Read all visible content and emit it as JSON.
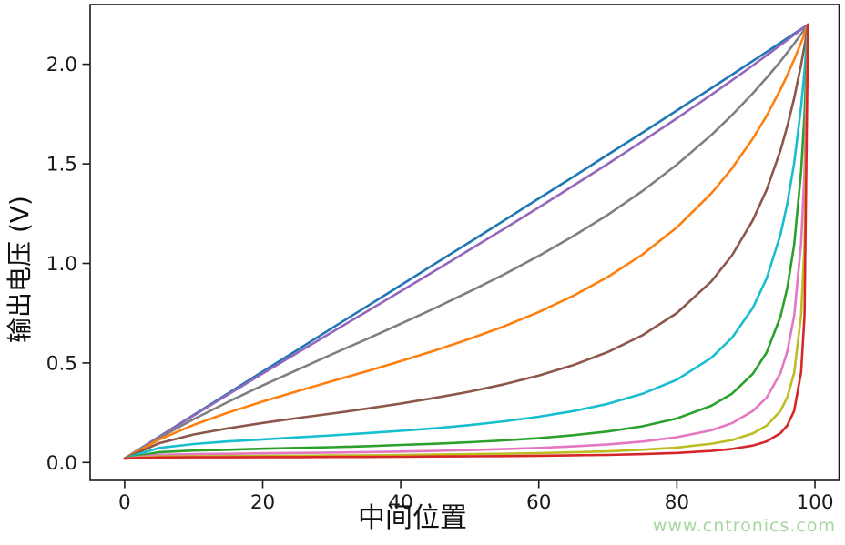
{
  "chart_data": {
    "type": "line",
    "title": "",
    "xlabel": "中间位置",
    "ylabel": "输出电压 (V)",
    "xlim": [
      -5.0,
      103.5
    ],
    "ylim": [
      -0.09,
      2.3
    ],
    "grid": false,
    "legend": "none",
    "frame_color": "#1a1a1a",
    "xticks": [
      0,
      20,
      40,
      60,
      80,
      100
    ],
    "yticks": [
      {
        "value": 0.0,
        "label": "0.0"
      },
      {
        "value": 0.5,
        "label": "0.5"
      },
      {
        "value": 1.0,
        "label": "1.0"
      },
      {
        "value": 1.5,
        "label": "1.5"
      },
      {
        "value": 2.0,
        "label": "2.0"
      }
    ],
    "x": [
      0,
      5,
      10,
      15,
      20,
      25,
      30,
      35,
      40,
      45,
      50,
      55,
      60,
      65,
      70,
      75,
      80,
      85,
      88,
      91,
      93,
      95,
      96,
      97,
      98,
      98.5,
      99
    ],
    "series": [
      {
        "name": "curve-blue-most-linear",
        "color": "#1f77b4",
        "values": [
          0.02,
          0.13,
          0.239,
          0.348,
          0.457,
          0.565,
          0.674,
          0.782,
          0.89,
          0.999,
          1.107,
          1.216,
          1.326,
          1.435,
          1.546,
          1.656,
          1.768,
          1.88,
          1.948,
          2.016,
          2.062,
          2.108,
          2.131,
          2.154,
          2.177,
          2.188,
          2.2
        ]
      },
      {
        "name": "curve-purple",
        "color": "#9467bd",
        "values": [
          0.02,
          0.129,
          0.236,
          0.342,
          0.447,
          0.55,
          0.654,
          0.757,
          0.86,
          0.964,
          1.069,
          1.174,
          1.281,
          1.39,
          1.5,
          1.613,
          1.729,
          1.847,
          1.92,
          1.994,
          2.045,
          2.096,
          2.122,
          2.148,
          2.174,
          2.187,
          2.2
        ]
      },
      {
        "name": "curve-gray",
        "color": "#7f7f7f",
        "values": [
          0.02,
          0.124,
          0.218,
          0.305,
          0.387,
          0.465,
          0.543,
          0.619,
          0.697,
          0.776,
          0.859,
          0.945,
          1.038,
          1.137,
          1.244,
          1.363,
          1.496,
          1.645,
          1.745,
          1.854,
          1.932,
          2.015,
          2.059,
          2.104,
          2.151,
          2.175,
          2.2
        ]
      },
      {
        "name": "curve-orange",
        "color": "#ff7f0e",
        "values": [
          0.02,
          0.115,
          0.189,
          0.251,
          0.306,
          0.358,
          0.408,
          0.457,
          0.509,
          0.563,
          0.621,
          0.684,
          0.756,
          0.837,
          0.932,
          1.044,
          1.181,
          1.352,
          1.478,
          1.626,
          1.741,
          1.873,
          1.945,
          2.024,
          2.108,
          2.153,
          2.2
        ]
      },
      {
        "name": "curve-brown",
        "color": "#8c564b",
        "values": [
          0.02,
          0.097,
          0.141,
          0.172,
          0.199,
          0.223,
          0.246,
          0.27,
          0.296,
          0.325,
          0.356,
          0.393,
          0.437,
          0.489,
          0.555,
          0.639,
          0.751,
          0.91,
          1.041,
          1.216,
          1.369,
          1.567,
          1.688,
          1.83,
          1.998,
          2.094,
          2.2
        ]
      },
      {
        "name": "curve-cyan",
        "color": "#17becf",
        "values": [
          0.02,
          0.073,
          0.093,
          0.106,
          0.116,
          0.126,
          0.136,
          0.147,
          0.159,
          0.172,
          0.188,
          0.207,
          0.23,
          0.258,
          0.295,
          0.345,
          0.416,
          0.526,
          0.627,
          0.776,
          0.924,
          1.144,
          1.299,
          1.504,
          1.786,
          1.971,
          2.2
        ]
      },
      {
        "name": "curve-green",
        "color": "#2ca02c",
        "values": [
          0.02,
          0.052,
          0.06,
          0.064,
          0.069,
          0.073,
          0.077,
          0.082,
          0.088,
          0.094,
          0.102,
          0.111,
          0.122,
          0.137,
          0.156,
          0.182,
          0.221,
          0.285,
          0.346,
          0.445,
          0.552,
          0.732,
          0.876,
          1.094,
          1.459,
          1.754,
          2.2
        ]
      },
      {
        "name": "curve-pink",
        "color": "#e377c2",
        "values": [
          0.02,
          0.039,
          0.042,
          0.044,
          0.046,
          0.048,
          0.05,
          0.052,
          0.055,
          0.058,
          0.062,
          0.067,
          0.073,
          0.081,
          0.091,
          0.105,
          0.127,
          0.162,
          0.198,
          0.258,
          0.326,
          0.449,
          0.557,
          0.737,
          1.099,
          1.464,
          2.2
        ]
      },
      {
        "name": "curve-olive",
        "color": "#bcbd22",
        "values": [
          0.02,
          0.03,
          0.031,
          0.032,
          0.033,
          0.034,
          0.035,
          0.036,
          0.038,
          0.04,
          0.042,
          0.044,
          0.047,
          0.051,
          0.056,
          0.064,
          0.075,
          0.094,
          0.113,
          0.146,
          0.185,
          0.259,
          0.327,
          0.451,
          0.739,
          1.102,
          2.2
        ]
      },
      {
        "name": "curve-red-most-bowed",
        "color": "#d62728",
        "values": [
          0.02,
          0.025,
          0.026,
          0.026,
          0.027,
          0.027,
          0.028,
          0.028,
          0.029,
          0.03,
          0.031,
          0.032,
          0.034,
          0.036,
          0.038,
          0.042,
          0.048,
          0.058,
          0.068,
          0.085,
          0.106,
          0.147,
          0.186,
          0.26,
          0.452,
          0.741,
          2.2
        ]
      }
    ]
  },
  "watermark": {
    "text": "www.cntronics.com",
    "color": "#a7d7a0"
  }
}
